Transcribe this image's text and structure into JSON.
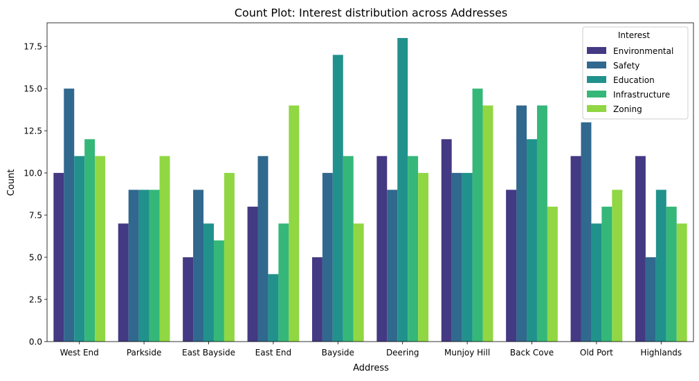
{
  "chart_data": {
    "type": "bar",
    "title": "Count Plot: Interest distribution across Addresses",
    "xlabel": "Address",
    "ylabel": "Count",
    "ylim": [
      0,
      18.9
    ],
    "yticks": [
      "0.0",
      "2.5",
      "5.0",
      "7.5",
      "10.0",
      "12.5",
      "15.0",
      "17.5"
    ],
    "grid": false,
    "legend": {
      "title": "Interest",
      "placement": "top-right"
    },
    "categories": [
      "West End",
      "Parkside",
      "East Bayside",
      "East End",
      "Bayside",
      "Deering",
      "Munjoy Hill",
      "Back Cove",
      "Old Port",
      "Highlands"
    ],
    "series": [
      {
        "name": "Environmental",
        "color": "#443983",
        "values": [
          10,
          7,
          5,
          8,
          5,
          11,
          12,
          9,
          11,
          11
        ]
      },
      {
        "name": "Safety",
        "color": "#31688e",
        "values": [
          15,
          9,
          9,
          11,
          10,
          9,
          10,
          14,
          13,
          5
        ]
      },
      {
        "name": "Education",
        "color": "#21918c",
        "values": [
          11,
          9,
          7,
          4,
          17,
          18,
          10,
          12,
          7,
          9
        ]
      },
      {
        "name": "Infrastructure",
        "color": "#35b779",
        "values": [
          12,
          9,
          6,
          7,
          11,
          11,
          15,
          14,
          8,
          8
        ]
      },
      {
        "name": "Zoning",
        "color": "#90d743",
        "values": [
          11,
          11,
          10,
          14,
          7,
          10,
          14,
          8,
          9,
          7
        ]
      }
    ]
  }
}
